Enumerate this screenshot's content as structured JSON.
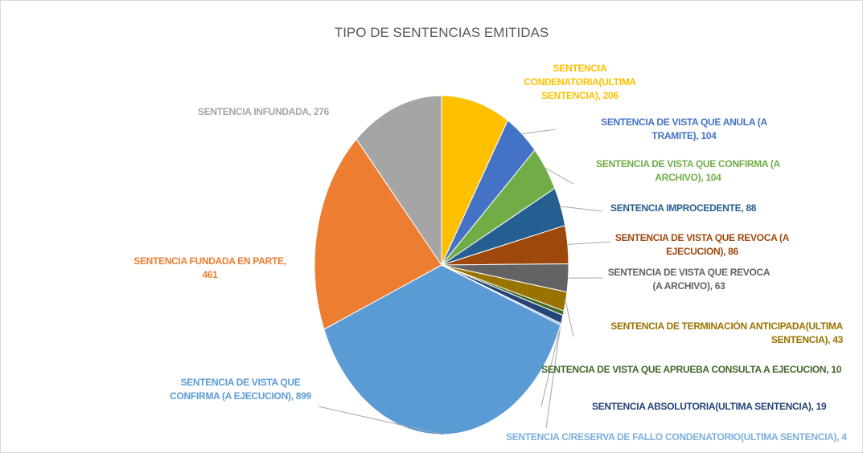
{
  "chart_data": {
    "type": "pie",
    "title": "TIPO DE SENTENCIAS EMITIDAS",
    "categories": [
      "SENTENCIA CONDENATORIA(ULTIMA SENTENCIA)",
      "SENTENCIA DE VISTA QUE ANULA (A TRAMITE)",
      "SENTENCIA DE VISTA QUE CONFIRMA (A ARCHIVO)",
      "SENTENCIA IMPROCEDENTE",
      "SENTENCIA DE VISTA QUE REVOCA (A EJECUCION)",
      "SENTENCIA DE VISTA QUE REVOCA (A ARCHIVO)",
      "SENTENCIA DE TERMINACIÓN ANTICIPADA(ULTIMA SENTENCIA)",
      "SENTENCIA DE VISTA QUE APRUEBA CONSULTA A EJECUCION",
      "SENTENCIA ABSOLUTORIA(ULTIMA SENTENCIA)",
      "SENTENCIA C/RESERVA DE FALLO CONDENATORIO(ULTIMA SENTENCIA)",
      "SENTENCIA DE VISTA QUE CONFIRMA (A EJECUCION)",
      "SENTENCIA FUNDADA EN PARTE",
      "SENTENCIA INFUNDADA"
    ],
    "values": [
      206,
      104,
      104,
      88,
      86,
      63,
      43,
      10,
      19,
      4,
      899,
      461,
      276
    ],
    "colors": [
      "#ffc000",
      "#4472c4",
      "#70ad47",
      "#255e91",
      "#9e480e",
      "#636363",
      "#997300",
      "#43682b",
      "#264478",
      "#7cafdd",
      "#5b9bd5",
      "#ed7d31",
      "#a5a5a5"
    ]
  }
}
